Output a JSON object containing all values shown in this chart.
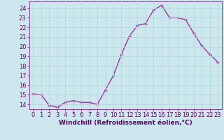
{
  "x": [
    0,
    1,
    2,
    3,
    4,
    5,
    6,
    7,
    8,
    9,
    10,
    11,
    12,
    13,
    14,
    15,
    16,
    17,
    18,
    19,
    20,
    21,
    22,
    23
  ],
  "y": [
    15.1,
    15.0,
    13.9,
    13.7,
    14.2,
    14.4,
    14.2,
    14.2,
    14.0,
    15.5,
    17.0,
    19.2,
    21.1,
    22.2,
    22.4,
    23.8,
    24.3,
    23.0,
    23.0,
    22.8,
    21.4,
    20.1,
    19.2,
    18.4
  ],
  "line_color": "#993399",
  "marker": "+",
  "marker_size": 3,
  "bg_color": "#cce8ee",
  "grid_color": "#b0d8e0",
  "xlabel": "Windchill (Refroidissement éolien,°C)",
  "xlabel_color": "#660066",
  "tick_color": "#660066",
  "ylim": [
    13.5,
    24.7
  ],
  "yticks": [
    14,
    15,
    16,
    17,
    18,
    19,
    20,
    21,
    22,
    23,
    24
  ],
  "xlim": [
    -0.5,
    23.5
  ],
  "xticks": [
    0,
    1,
    2,
    3,
    4,
    5,
    6,
    7,
    8,
    9,
    10,
    11,
    12,
    13,
    14,
    15,
    16,
    17,
    18,
    19,
    20,
    21,
    22,
    23
  ],
  "line_width": 1.0,
  "xlabel_fontsize": 6.5,
  "tick_fontsize": 6.0,
  "fig_width": 3.2,
  "fig_height": 2.0,
  "dpi": 100
}
